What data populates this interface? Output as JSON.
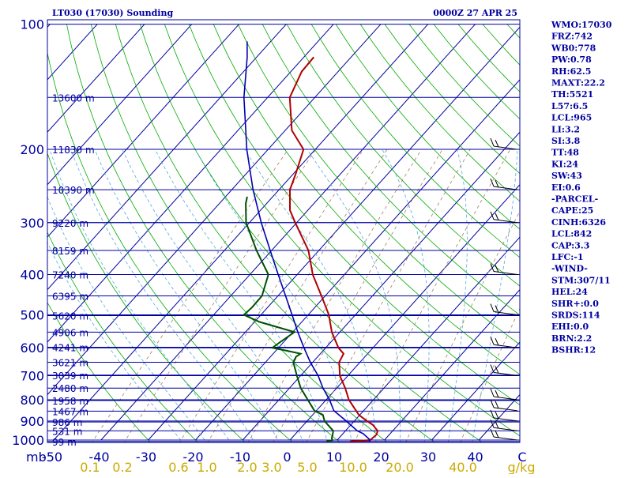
{
  "header": {
    "title": "LT030 (17030) Sounding",
    "time": "0000Z 27 APR 25"
  },
  "indices": [
    "WMO:17030",
    "FRZ:742",
    "WB0:778",
    "PW:0.78",
    "RH:62.5",
    "MAXT:22.2",
    "TH:5521",
    "L57:6.5",
    "LCL:965",
    "LI:3.2",
    "SI:3.8",
    "TT:48",
    "KI:24",
    "SW:43",
    "EI:0.6",
    "-PARCEL-",
    "CAPE:25",
    "CINH:6326",
    "LCL:842",
    "CAP:3.3",
    "LFC:-1",
    "-WIND-",
    "STM:307/11",
    "HEL:24",
    "SHR+:0.0",
    "SRDS:114",
    "EHI:0.0",
    "BRN:2.2",
    "BSHR:12"
  ],
  "colors": {
    "axis": "#0000a0",
    "temperature": "#b00000",
    "dewpoint": "#005000",
    "parcel": "#0000b0",
    "dry_adiabat": "#00aa00",
    "moist_adiabat": "#55aadd",
    "mixing_ratio": "#a08060",
    "wind": "#000000",
    "mixing_label": "#ccaa00"
  },
  "chart_data": {
    "type": "line",
    "chart": "skew-T log-P sounding",
    "pressure_axis": {
      "unit": "mb",
      "range": [
        1000,
        100
      ],
      "scale": "log",
      "tick_labels": [
        "1000",
        "900",
        "800",
        "700",
        "600",
        "500",
        "400",
        "300",
        "200",
        "100"
      ]
    },
    "temperature_axis": {
      "unit": "C",
      "range": [
        -50,
        50
      ],
      "tick_labels": [
        "-50",
        "-40",
        "-30",
        "-20",
        "-10",
        "0",
        "10",
        "20",
        "30",
        "40",
        "C"
      ]
    },
    "mixing_ratio_axis": {
      "unit": "g/kg",
      "tick_labels": [
        "0.1",
        "0.2",
        "0.6",
        "1.0",
        "2.0",
        "3.0",
        "5.0",
        "10.0",
        "20.0",
        "40.0",
        "g/kg"
      ],
      "values": [
        0.1,
        0.2,
        0.6,
        1.0,
        2.0,
        3.0,
        5.0,
        10.0,
        20.0,
        40.0
      ]
    },
    "height_labels": [
      {
        "p": 1008,
        "label": "99 m"
      },
      {
        "p": 950,
        "label": "531 m"
      },
      {
        "p": 905,
        "label": "986 m"
      },
      {
        "p": 852,
        "label": "1467 m"
      },
      {
        "p": 803,
        "label": "1958 m"
      },
      {
        "p": 750,
        "label": "2480 m"
      },
      {
        "p": 698,
        "label": "3039 m"
      },
      {
        "p": 650,
        "label": "3621 m"
      },
      {
        "p": 598,
        "label": "4241 m"
      },
      {
        "p": 550,
        "label": "4906 m"
      },
      {
        "p": 502,
        "label": "5620 m"
      },
      {
        "p": 450,
        "label": "6395 m"
      },
      {
        "p": 400,
        "label": "7240 m"
      },
      {
        "p": 350,
        "label": "8159 m"
      },
      {
        "p": 300,
        "label": "9220 m"
      },
      {
        "p": 250,
        "label": "10390 m"
      },
      {
        "p": 200,
        "label": "11830 m"
      },
      {
        "p": 150,
        "label": "13600 m"
      }
    ],
    "series": [
      {
        "key": "temperature",
        "points": [
          [
            1008,
            13
          ],
          [
            1000,
            17
          ],
          [
            970,
            17.3
          ],
          [
            950,
            16.8
          ],
          [
            920,
            14.7
          ],
          [
            900,
            12.7
          ],
          [
            870,
            9.8
          ],
          [
            850,
            8.4
          ],
          [
            800,
            4.8
          ],
          [
            750,
            1.8
          ],
          [
            700,
            -1.7
          ],
          [
            670,
            -3.3
          ],
          [
            650,
            -4.4
          ],
          [
            620,
            -5.1
          ],
          [
            600,
            -7.3
          ],
          [
            550,
            -11.7
          ],
          [
            500,
            -15.6
          ],
          [
            450,
            -20.8
          ],
          [
            400,
            -26.7
          ],
          [
            350,
            -32.2
          ],
          [
            300,
            -40.3
          ],
          [
            280,
            -43.8
          ],
          [
            250,
            -47.7
          ],
          [
            230,
            -49.4
          ],
          [
            200,
            -52.5
          ],
          [
            180,
            -58.6
          ],
          [
            150,
            -65.3
          ],
          [
            130,
            -67.7
          ],
          [
            120,
            -67.9
          ]
        ]
      },
      {
        "key": "dewpoint",
        "points": [
          [
            1008,
            8
          ],
          [
            1000,
            9
          ],
          [
            990,
            8.5
          ],
          [
            970,
            8
          ],
          [
            950,
            7.4
          ],
          [
            900,
            3.7
          ],
          [
            870,
            2.2
          ],
          [
            850,
            -0.4
          ],
          [
            800,
            -3.9
          ],
          [
            750,
            -7.6
          ],
          [
            700,
            -10.8
          ],
          [
            650,
            -14.1
          ],
          [
            630,
            -14.6
          ],
          [
            620,
            -14.2
          ],
          [
            610,
            -17.6
          ],
          [
            600,
            -21.3
          ],
          [
            580,
            -20.7
          ],
          [
            550,
            -19.6
          ],
          [
            520,
            -28.9
          ],
          [
            500,
            -33.6
          ],
          [
            480,
            -33.3
          ],
          [
            450,
            -33.4
          ],
          [
            400,
            -36.1
          ],
          [
            350,
            -43.2
          ],
          [
            300,
            -50.7
          ],
          [
            270,
            -54.4
          ],
          [
            260,
            -55.4
          ]
        ]
      },
      {
        "key": "parcel",
        "points": [
          [
            1008,
            17
          ],
          [
            1000,
            17
          ],
          [
            965,
            14.3
          ],
          [
            950,
            12.5
          ],
          [
            900,
            8.3
          ],
          [
            850,
            3.7
          ],
          [
            800,
            0.7
          ],
          [
            750,
            -2.9
          ],
          [
            700,
            -6.3
          ],
          [
            650,
            -10.5
          ],
          [
            600,
            -14.6
          ],
          [
            550,
            -18.9
          ],
          [
            500,
            -23.4
          ],
          [
            450,
            -28.4
          ],
          [
            400,
            -34
          ],
          [
            350,
            -40.3
          ],
          [
            300,
            -47.5
          ],
          [
            250,
            -55.5
          ],
          [
            200,
            -64.5
          ],
          [
            150,
            -75
          ],
          [
            120,
            -82
          ],
          [
            110,
            -85
          ]
        ]
      }
    ],
    "wind_barbs_pressure": [
      1000,
      950,
      900,
      850,
      800,
      700,
      600,
      500,
      400,
      300,
      250,
      200
    ],
    "grid": true
  }
}
